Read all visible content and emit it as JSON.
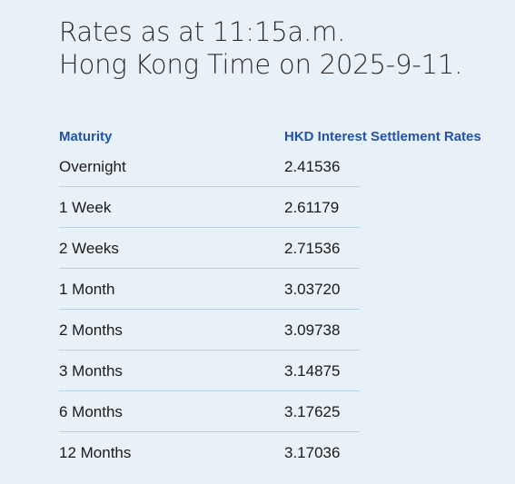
{
  "heading": {
    "line1": "Rates as at 11:15a.m.",
    "line2": "Hong Kong Time on 2025-9-11."
  },
  "table": {
    "headers": {
      "maturity": "Maturity",
      "rate": "HKD Interest Settlement Rates"
    },
    "rows": [
      {
        "maturity": "Overnight",
        "rate": "2.41536"
      },
      {
        "maturity": "1 Week",
        "rate": "2.61179"
      },
      {
        "maturity": "2 Weeks",
        "rate": "2.71536"
      },
      {
        "maturity": "1 Month",
        "rate": "3.03720"
      },
      {
        "maturity": "2 Months",
        "rate": "3.09738"
      },
      {
        "maturity": "3 Months",
        "rate": "3.14875"
      },
      {
        "maturity": "6 Months",
        "rate": "3.17625"
      },
      {
        "maturity": "12 Months",
        "rate": "3.17036"
      }
    ]
  },
  "colors": {
    "background": "#e8f1f8",
    "header_text": "#2352a8",
    "row_divider": "#b9d3e0"
  }
}
